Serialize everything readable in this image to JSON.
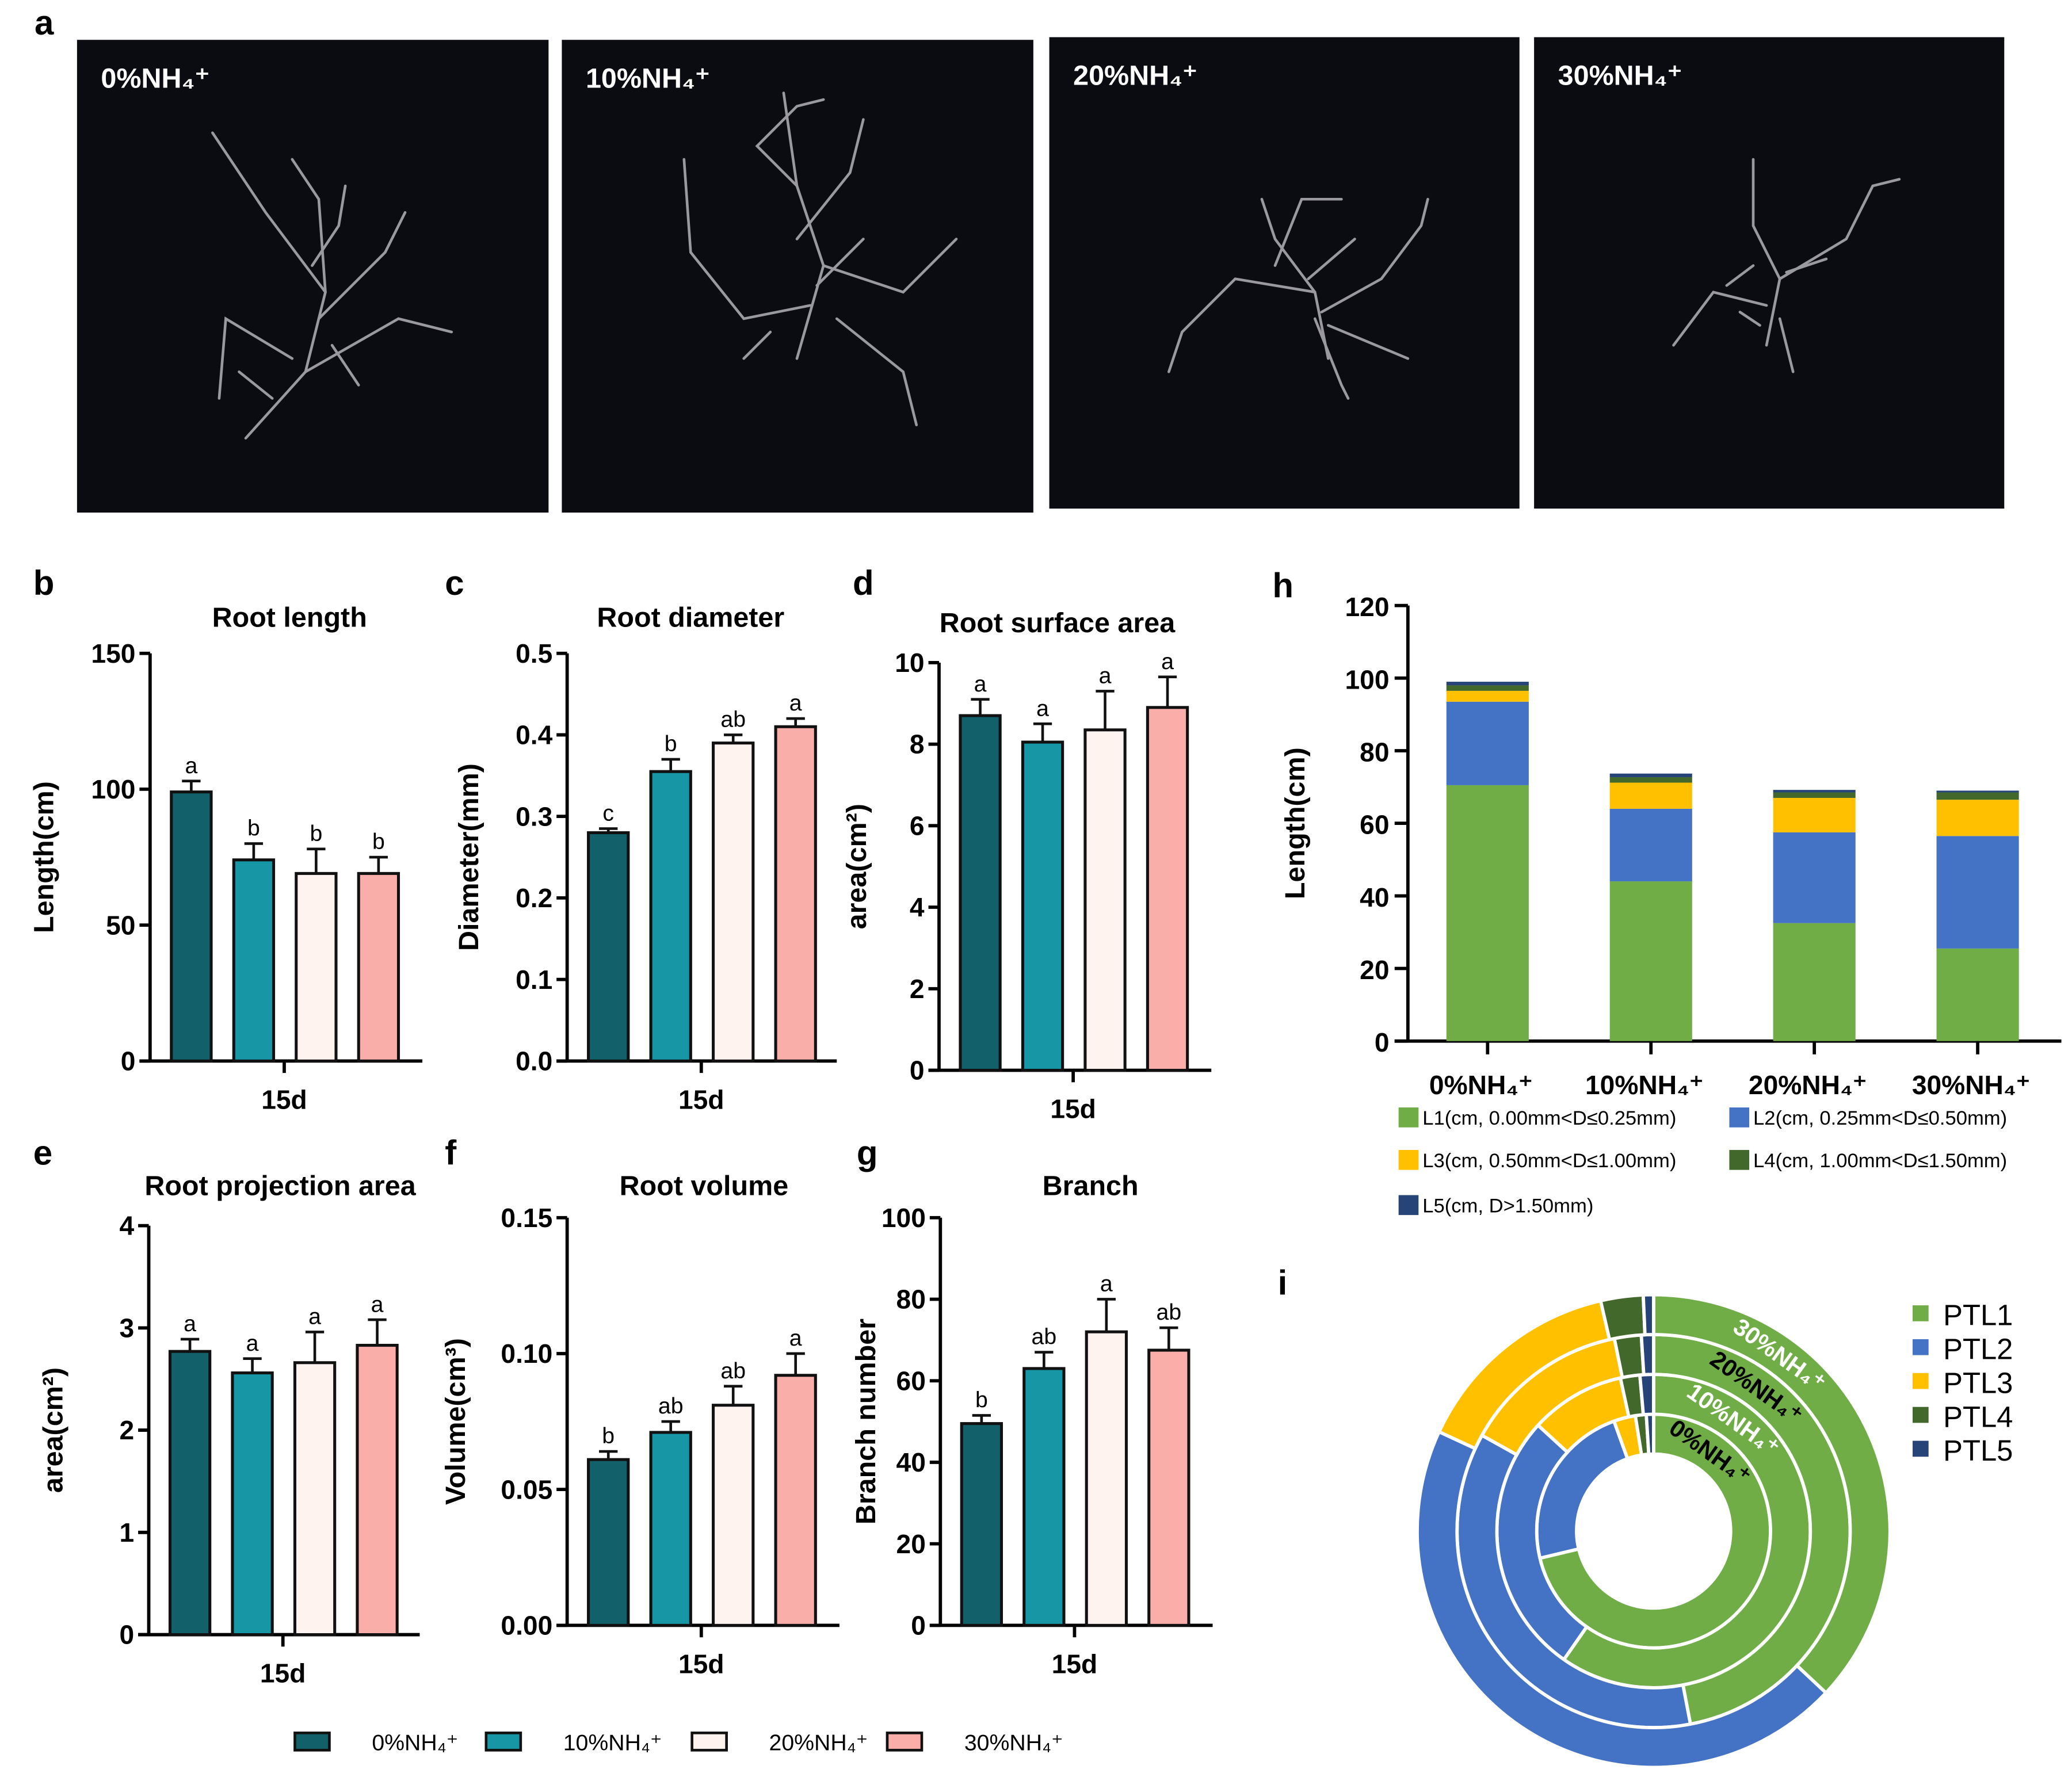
{
  "panel_letters": [
    "a",
    "b",
    "c",
    "d",
    "e",
    "f",
    "g",
    "h",
    "i"
  ],
  "photos": [
    {
      "label": "0%NH₄⁺"
    },
    {
      "label": "10%NH₄⁺"
    },
    {
      "label": "20%NH₄⁺"
    },
    {
      "label": "30%NH₄⁺"
    }
  ],
  "group_legend": {
    "labels": [
      "0%NH₄⁺",
      "10%NH₄⁺",
      "20%NH₄⁺",
      "30%NH₄⁺"
    ],
    "colors": [
      "#11606a",
      "#1797a5",
      "#fff3f0",
      "#f9aeaa"
    ]
  },
  "chart_data": [
    {
      "type": "bar",
      "panel": "b",
      "title": "Root length",
      "ylabel": "Length(cm)",
      "xlabel": "15d",
      "ylim": [
        0,
        150
      ],
      "yticks": [
        "0",
        "50",
        "100",
        "150"
      ],
      "values": [
        99,
        74,
        69,
        69
      ],
      "errors": [
        4,
        6,
        9,
        6
      ],
      "letters": [
        "a",
        "b",
        "b",
        "b"
      ]
    },
    {
      "type": "bar",
      "panel": "c",
      "title": "Root diameter",
      "ylabel": "Diameter(mm)",
      "xlabel": "15d",
      "ylim": [
        0,
        0.5
      ],
      "yticks": [
        "0.0",
        "0.1",
        "0.2",
        "0.3",
        "0.4",
        "0.5"
      ],
      "values": [
        0.28,
        0.355,
        0.39,
        0.41
      ],
      "errors": [
        0.005,
        0.015,
        0.01,
        0.01
      ],
      "letters": [
        "c",
        "b",
        "ab",
        "a"
      ]
    },
    {
      "type": "bar",
      "panel": "d",
      "title": "Root surface area",
      "ylabel": "area(cm²)",
      "xlabel": "15d",
      "ylim": [
        0,
        10
      ],
      "yticks": [
        "0",
        "2",
        "4",
        "6",
        "8",
        "10"
      ],
      "values": [
        8.7,
        8.05,
        8.35,
        8.9
      ],
      "errors": [
        0.4,
        0.45,
        0.95,
        0.75
      ],
      "letters": [
        "a",
        "a",
        "a",
        "a"
      ]
    },
    {
      "type": "bar",
      "panel": "e",
      "title": "Root projection area",
      "ylabel": "area(cm²)",
      "xlabel": "15d",
      "ylim": [
        0,
        4
      ],
      "yticks": [
        "0",
        "1",
        "2",
        "3",
        "4"
      ],
      "values": [
        2.77,
        2.56,
        2.66,
        2.83
      ],
      "errors": [
        0.12,
        0.14,
        0.3,
        0.25
      ],
      "letters": [
        "a",
        "a",
        "a",
        "a"
      ]
    },
    {
      "type": "bar",
      "panel": "f",
      "title": "Root volume",
      "ylabel": "Volume(cm³)",
      "xlabel": "15d",
      "ylim": [
        0,
        0.15
      ],
      "yticks": [
        "0.00",
        "0.05",
        "0.10",
        "0.15"
      ],
      "values": [
        0.061,
        0.071,
        0.081,
        0.092
      ],
      "errors": [
        0.003,
        0.004,
        0.007,
        0.008
      ],
      "letters": [
        "b",
        "ab",
        "ab",
        "a"
      ]
    },
    {
      "type": "bar",
      "panel": "g",
      "title": "Branch",
      "ylabel": "Branch number",
      "xlabel": "15d",
      "ylim": [
        0,
        100
      ],
      "yticks": [
        "0",
        "20",
        "40",
        "60",
        "80",
        "100"
      ],
      "values": [
        49.5,
        63,
        72,
        67.5
      ],
      "errors": [
        2,
        4,
        8,
        5.5
      ],
      "letters": [
        "b",
        "ab",
        "a",
        "ab"
      ]
    },
    {
      "type": "bar",
      "stacked": true,
      "panel": "h",
      "ylabel": "Length(cm)",
      "ylim": [
        0,
        120
      ],
      "yticks": [
        "0",
        "20",
        "40",
        "60",
        "80",
        "100",
        "120"
      ],
      "categories": [
        "0%NH₄⁺",
        "10%NH₄⁺",
        "20%NH₄⁺",
        "30%NH₄⁺"
      ],
      "series": [
        {
          "name": "L1(cm, 0.00mm<D≤0.25mm)",
          "color": "#70ad47",
          "values": [
            70.5,
            44,
            32.5,
            25.5
          ]
        },
        {
          "name": "L2(cm, 0.25mm<D≤0.50mm)",
          "color": "#4472c4",
          "values": [
            23,
            20,
            25,
            31
          ]
        },
        {
          "name": "L3(cm, 0.50mm<D≤1.00mm)",
          "color": "#ffc000",
          "values": [
            3,
            7.2,
            9.5,
            10
          ]
        },
        {
          "name": "L4(cm, 1.00mm<D≤1.50mm)",
          "color": "#43682b",
          "values": [
            1.5,
            1.5,
            1.5,
            2
          ]
        },
        {
          "name": "L5(cm, D>1.50mm)",
          "color": "#264478",
          "values": [
            1,
            1,
            0.7,
            0.5
          ]
        }
      ]
    },
    {
      "type": "pie",
      "donut": true,
      "panel": "i",
      "rings": [
        "0%NH₄⁺",
        "10%NH₄⁺",
        "20%NH₄⁺",
        "30%NH₄⁺"
      ],
      "ring_label_colors": [
        "#000000",
        "#ffffff",
        "#000000",
        "#ffffff"
      ],
      "series": [
        {
          "name": "PTL1",
          "color": "#70ad47",
          "values": [
            71.2,
            59.7,
            47.0,
            37.0
          ]
        },
        {
          "name": "PTL2",
          "color": "#4472c4",
          "values": [
            23.2,
            27.1,
            36.1,
            44.9
          ]
        },
        {
          "name": "PTL3",
          "color": "#ffc000",
          "values": [
            3.0,
            9.8,
            13.7,
            14.5
          ]
        },
        {
          "name": "PTL4",
          "color": "#43682b",
          "values": [
            1.5,
            2.0,
            2.2,
            2.9
          ]
        },
        {
          "name": "PTL5",
          "color": "#264478",
          "values": [
            1.0,
            1.4,
            1.0,
            0.7
          ]
        }
      ]
    }
  ]
}
